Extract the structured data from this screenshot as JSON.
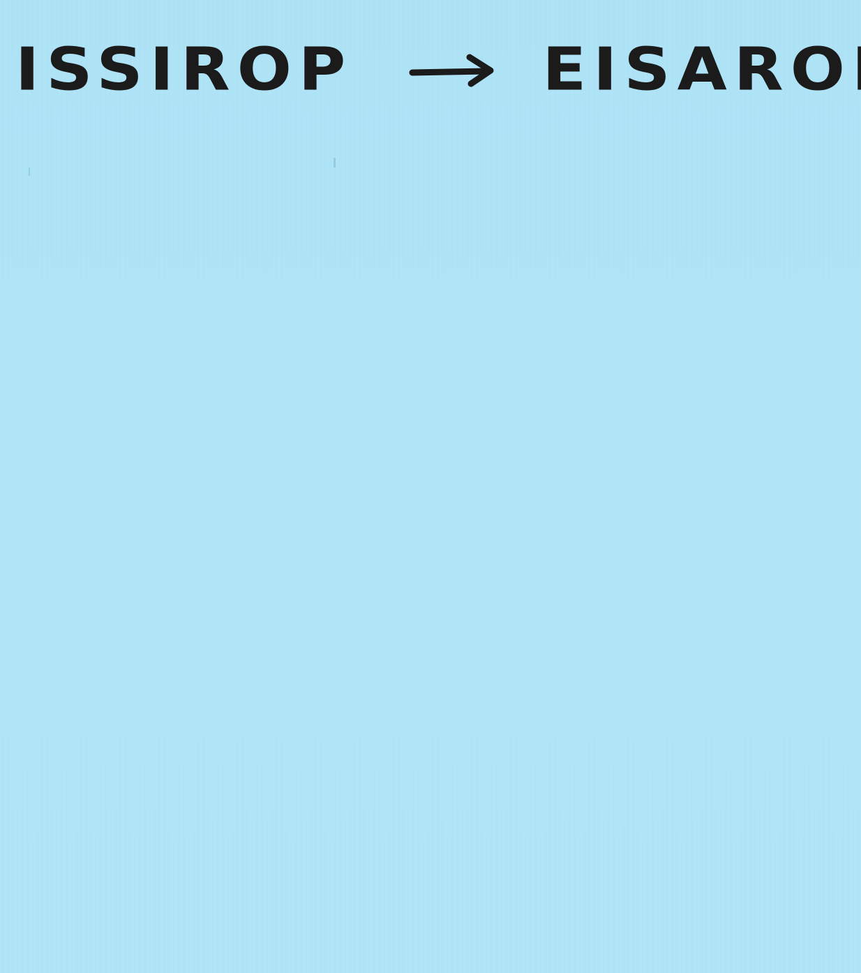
{
  "note": {
    "background_color": "#aee3f6",
    "ink_color": "#1b1b1b",
    "text_left": "ISSIROP",
    "arrow_icon": "right-arrow-icon",
    "text_right": "EISAROP"
  }
}
